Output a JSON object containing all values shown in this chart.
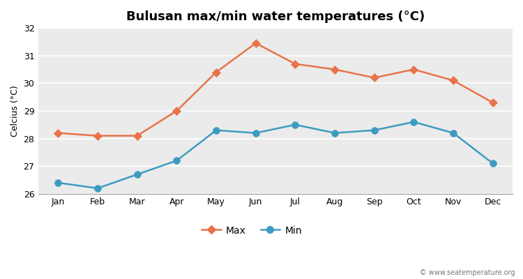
{
  "months": [
    "Jan",
    "Feb",
    "Mar",
    "Apr",
    "May",
    "Jun",
    "Jul",
    "Aug",
    "Sep",
    "Oct",
    "Nov",
    "Dec"
  ],
  "max_temps": [
    28.2,
    28.1,
    28.1,
    29.0,
    30.4,
    31.45,
    30.7,
    30.5,
    30.2,
    30.5,
    30.1,
    29.3
  ],
  "min_temps": [
    26.4,
    26.2,
    26.7,
    27.2,
    28.3,
    28.2,
    28.5,
    28.2,
    28.3,
    28.6,
    28.2,
    27.1
  ],
  "max_color": "#e8734a",
  "min_color": "#3d9bc1",
  "outer_bg_color": "#ffffff",
  "plot_bg_color": "#ebebeb",
  "title": "Bulusan max/min water temperatures (°C)",
  "ylabel": "Celcius (°C)",
  "ylim": [
    26,
    32
  ],
  "yticks": [
    26,
    27,
    28,
    29,
    30,
    31,
    32
  ],
  "legend_max": "Max",
  "legend_min": "Min",
  "watermark": "© www.seatemperature.org",
  "title_fontsize": 13,
  "label_fontsize": 9,
  "tick_fontsize": 9,
  "marker_size_max": 6,
  "marker_size_min": 7,
  "line_width": 1.8
}
